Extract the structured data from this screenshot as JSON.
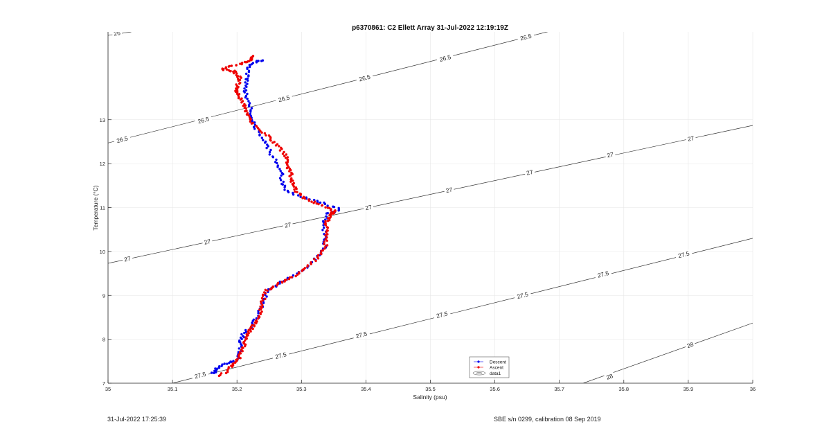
{
  "chart_data": {
    "type": "scatter",
    "title": "p6370861: C2 Ellett Array 31-Jul-2022 12:19:19Z",
    "xlabel": "Salinity (psu)",
    "ylabel": "Temperature (°C)",
    "xlim": [
      35,
      36
    ],
    "ylim": [
      7,
      15
    ],
    "xticks": [
      "35",
      "35.1",
      "35.2",
      "35.3",
      "35.4",
      "35.5",
      "35.6",
      "35.7",
      "35.8",
      "35.9",
      "36"
    ],
    "yticks": [
      "7",
      "8",
      "9",
      "10",
      "11",
      "12",
      "13"
    ],
    "grid": true,
    "legend": {
      "location": "bottom-center",
      "entries": [
        "Descent",
        "Ascent",
        "data1"
      ]
    },
    "contours": {
      "name": "data1",
      "levels": [
        "26",
        "26.5",
        "27",
        "27.5",
        "28"
      ],
      "lines": [
        {
          "label": "26",
          "points": [
            [
              35.0,
              14.92
            ],
            [
              35.036,
              15.0
            ]
          ]
        },
        {
          "label": "26.5",
          "points": [
            [
              35.0,
              12.47
            ],
            [
              35.7,
              15.07
            ]
          ]
        },
        {
          "label": "27",
          "points": [
            [
              35.0,
              9.73
            ],
            [
              36.0,
              12.87
            ]
          ]
        },
        {
          "label": "27.5",
          "points": [
            [
              35.1,
              7.0
            ],
            [
              36.0,
              10.3
            ]
          ]
        },
        {
          "label": "28",
          "points": [
            [
              35.737,
              7.0
            ],
            [
              36.0,
              8.37
            ]
          ]
        }
      ],
      "label_positions": [
        {
          "text": "26",
          "s": 35.014,
          "t": 14.97
        },
        {
          "text": "26.5",
          "s": 35.022,
          "t": 12.55
        },
        {
          "text": "26.5",
          "s": 35.148,
          "t": 12.99
        },
        {
          "text": "26.5",
          "s": 35.273,
          "t": 13.48
        },
        {
          "text": "26.5",
          "s": 35.398,
          "t": 13.95
        },
        {
          "text": "26.5",
          "s": 35.523,
          "t": 14.4
        },
        {
          "text": "26.5",
          "s": 35.648,
          "t": 14.88
        },
        {
          "text": "27",
          "s": 35.03,
          "t": 9.83
        },
        {
          "text": "27",
          "s": 35.154,
          "t": 10.22
        },
        {
          "text": "27",
          "s": 35.279,
          "t": 10.6
        },
        {
          "text": "27",
          "s": 35.404,
          "t": 11.0
        },
        {
          "text": "27",
          "s": 35.529,
          "t": 11.4
        },
        {
          "text": "27",
          "s": 35.654,
          "t": 11.8
        },
        {
          "text": "27",
          "s": 35.779,
          "t": 12.2
        },
        {
          "text": "27",
          "s": 35.904,
          "t": 12.57
        },
        {
          "text": "27.5",
          "s": 35.143,
          "t": 7.18
        },
        {
          "text": "27.5",
          "s": 35.268,
          "t": 7.63
        },
        {
          "text": "27.5",
          "s": 35.393,
          "t": 8.1
        },
        {
          "text": "27.5",
          "s": 35.518,
          "t": 8.56
        },
        {
          "text": "27.5",
          "s": 35.643,
          "t": 9.0
        },
        {
          "text": "27.5",
          "s": 35.768,
          "t": 9.48
        },
        {
          "text": "27.5",
          "s": 35.893,
          "t": 9.93
        },
        {
          "text": "28",
          "s": 35.778,
          "t": 7.15
        },
        {
          "text": "28",
          "s": 35.903,
          "t": 7.87
        }
      ]
    },
    "series": [
      {
        "name": "Descent",
        "color": "#0000ee",
        "path": [
          [
            35.162,
            7.22
          ],
          [
            35.17,
            7.34
          ],
          [
            35.185,
            7.45
          ],
          [
            35.2,
            7.55
          ],
          [
            35.205,
            7.75
          ],
          [
            35.205,
            7.95
          ],
          [
            35.21,
            8.1
          ],
          [
            35.222,
            8.3
          ],
          [
            35.232,
            8.5
          ],
          [
            35.24,
            8.8
          ],
          [
            35.245,
            9.05
          ],
          [
            35.258,
            9.2
          ],
          [
            35.275,
            9.35
          ],
          [
            35.3,
            9.55
          ],
          [
            35.32,
            9.8
          ],
          [
            35.335,
            10.05
          ],
          [
            35.337,
            10.3
          ],
          [
            35.335,
            10.6
          ],
          [
            35.34,
            10.85
          ],
          [
            35.36,
            10.95
          ],
          [
            35.335,
            11.1
          ],
          [
            35.31,
            11.2
          ],
          [
            35.28,
            11.35
          ],
          [
            35.27,
            11.55
          ],
          [
            35.27,
            11.8
          ],
          [
            35.26,
            12.05
          ],
          [
            35.25,
            12.3
          ],
          [
            35.24,
            12.55
          ],
          [
            35.23,
            12.8
          ],
          [
            35.225,
            13.05
          ],
          [
            35.22,
            13.3
          ],
          [
            35.215,
            13.55
          ],
          [
            35.212,
            13.75
          ],
          [
            35.215,
            13.95
          ],
          [
            35.217,
            14.15
          ],
          [
            35.225,
            14.3
          ],
          [
            35.24,
            14.35
          ]
        ]
      },
      {
        "name": "Ascent",
        "color": "#ee0000",
        "path": [
          [
            35.175,
            7.18
          ],
          [
            35.19,
            7.35
          ],
          [
            35.2,
            7.5
          ],
          [
            35.205,
            7.65
          ],
          [
            35.21,
            7.85
          ],
          [
            35.215,
            8.05
          ],
          [
            35.22,
            8.2
          ],
          [
            35.227,
            8.35
          ],
          [
            35.235,
            8.6
          ],
          [
            35.24,
            8.85
          ],
          [
            35.245,
            9.1
          ],
          [
            35.262,
            9.25
          ],
          [
            35.285,
            9.4
          ],
          [
            35.305,
            9.6
          ],
          [
            35.325,
            9.85
          ],
          [
            35.338,
            10.1
          ],
          [
            35.338,
            10.4
          ],
          [
            35.338,
            10.65
          ],
          [
            35.345,
            10.85
          ],
          [
            35.352,
            10.92
          ],
          [
            35.332,
            11.05
          ],
          [
            35.305,
            11.2
          ],
          [
            35.29,
            11.4
          ],
          [
            35.285,
            11.6
          ],
          [
            35.283,
            11.8
          ],
          [
            35.278,
            12.0
          ],
          [
            35.275,
            12.2
          ],
          [
            35.26,
            12.45
          ],
          [
            35.245,
            12.65
          ],
          [
            35.225,
            12.9
          ],
          [
            35.215,
            13.15
          ],
          [
            35.21,
            13.4
          ],
          [
            35.2,
            13.6
          ],
          [
            35.2,
            13.75
          ],
          [
            35.205,
            13.95
          ],
          [
            35.195,
            14.1
          ],
          [
            35.175,
            14.15
          ],
          [
            35.2,
            14.25
          ],
          [
            35.22,
            14.35
          ],
          [
            35.225,
            14.45
          ]
        ]
      }
    ]
  },
  "legend": {
    "descent_label": "Descent",
    "ascent_label": "Ascent",
    "contour_label": "data1"
  },
  "footer": {
    "timestamp": "31-Jul-2022 17:25:39",
    "sensor": "SBE s/n 0299, calibration 08 Sep 2019"
  }
}
